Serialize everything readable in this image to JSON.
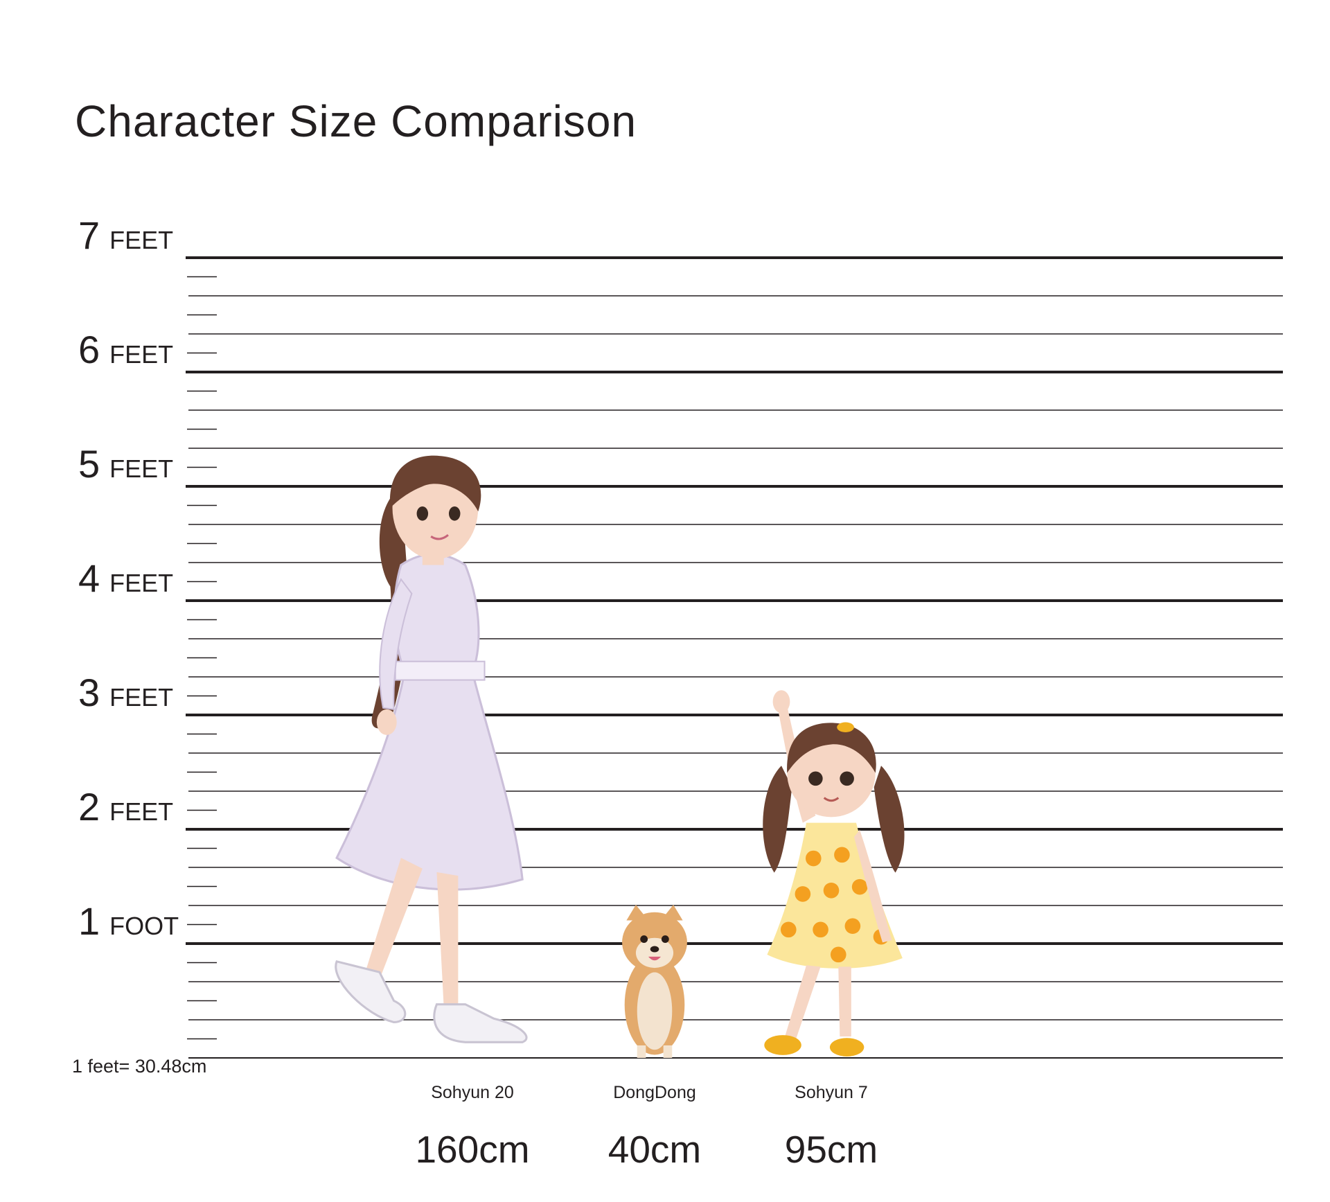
{
  "title": "Character Size Comparison",
  "unit_note": "1 feet= 30.48cm",
  "colors": {
    "ink": "#231f20",
    "dress_woman": "#e7dff0",
    "hair": "#6b4231",
    "skin": "#f6d6c4",
    "dog_fur": "#e3aa6c",
    "dress_girl": "#fbe69b",
    "dress_dots": "#f4a020",
    "shoes_girl": "#f0b020"
  },
  "chart_data": {
    "type": "height_comparison",
    "title": "Character Size Comparison",
    "y_unit": "feet",
    "ylim": [
      0,
      7
    ],
    "minor_step": 0.3333333333,
    "ticks": [
      {
        "value": 7,
        "num": "7",
        "word": "FEET"
      },
      {
        "value": 6,
        "num": "6",
        "word": "FEET"
      },
      {
        "value": 5,
        "num": "5",
        "word": "FEET"
      },
      {
        "value": 4,
        "num": "4",
        "word": "FEET"
      },
      {
        "value": 3,
        "num": "3",
        "word": "FEET"
      },
      {
        "value": 2,
        "num": "2",
        "word": "FEET"
      },
      {
        "value": 1,
        "num": "1",
        "word": "FOOT"
      }
    ],
    "characters": [
      {
        "name": "Sohyun 20",
        "height_label": "160cm",
        "height_cm": 160,
        "icon": "woman-figure-icon"
      },
      {
        "name": "DongDong",
        "height_label": "40cm",
        "height_cm": 40,
        "icon": "pomeranian-dog-icon"
      },
      {
        "name": "Sohyun 7",
        "height_label": "95cm",
        "height_cm": 95,
        "icon": "girl-figure-icon"
      }
    ],
    "cm_per_foot": 30.48
  }
}
